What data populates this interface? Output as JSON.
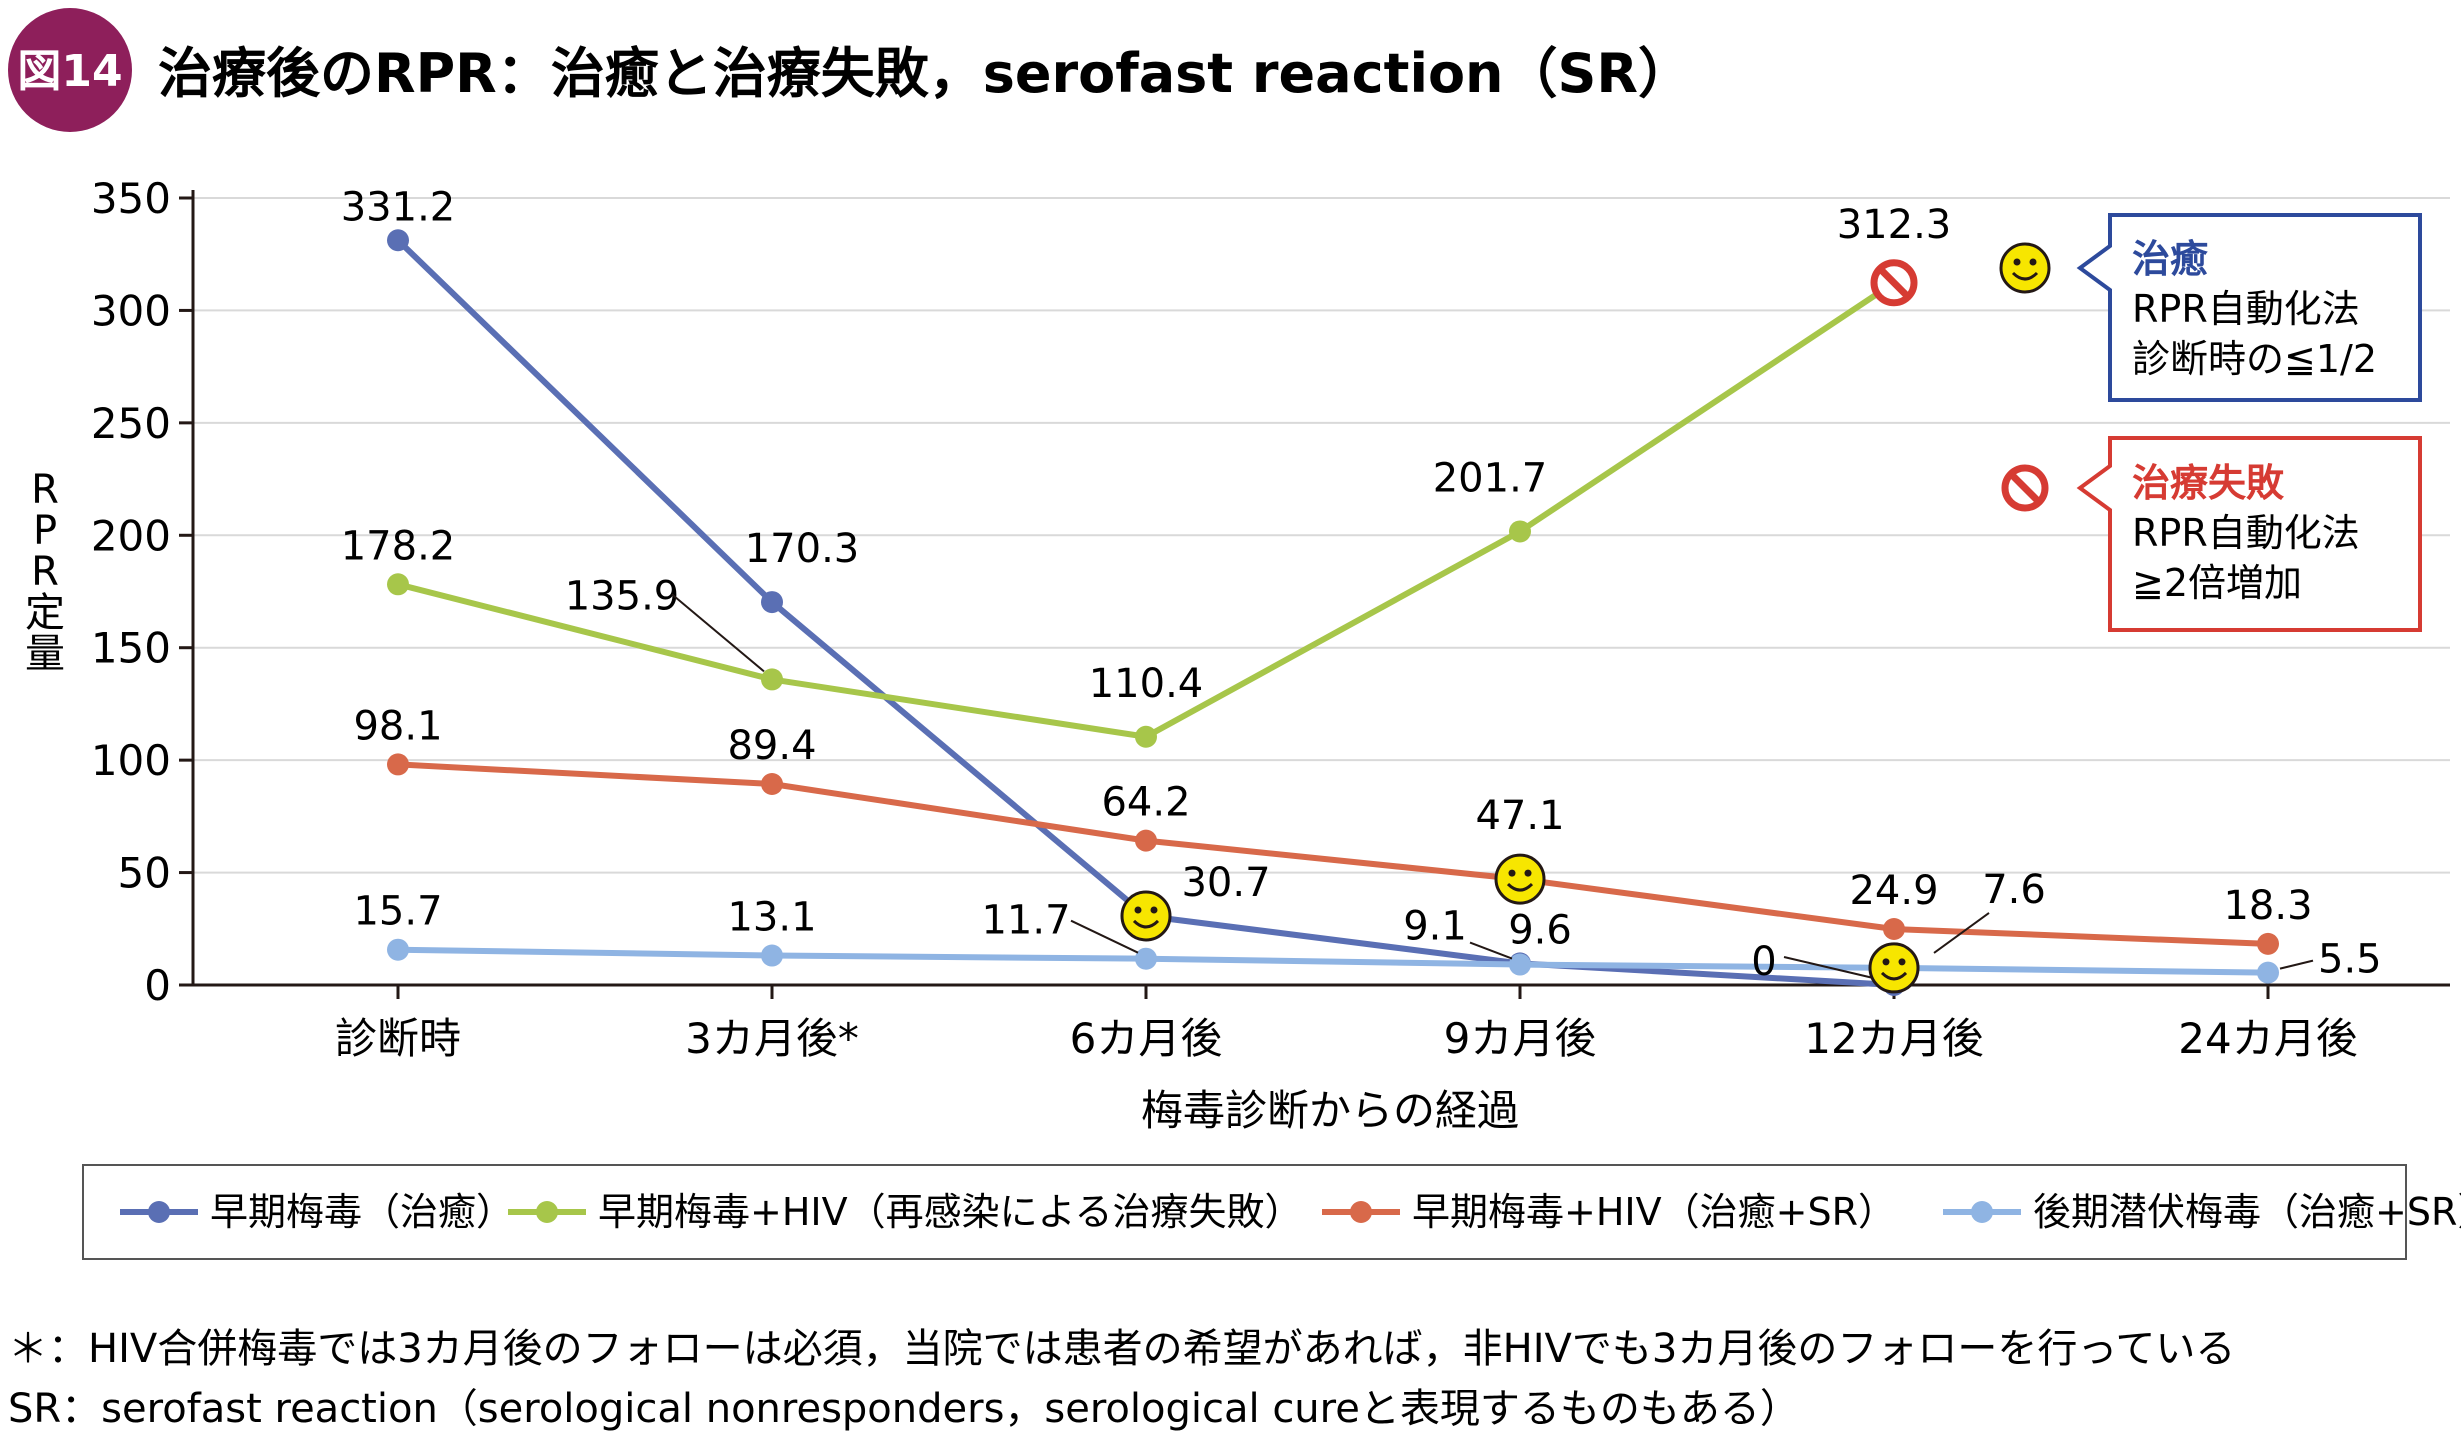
{
  "figure": {
    "badge": "図14",
    "title": "治療後のRPR：治癒と治療失敗，serofast reaction（SR）"
  },
  "chart_data": {
    "type": "line",
    "ylabel": "RPR定量",
    "xlabel": "梅毒診断からの経過",
    "ylim": [
      0,
      350
    ],
    "yticks": [
      "0",
      "50",
      "100",
      "150",
      "200",
      "250",
      "300",
      "350"
    ],
    "grid": true,
    "categories": [
      "診断時",
      "3カ月後*",
      "6カ月後",
      "9カ月後",
      "12カ月後",
      "24カ月後"
    ],
    "series": [
      {
        "name": "早期梅毒（治癒）",
        "color": "#5a6fb4",
        "x": [
          0,
          1,
          2,
          3,
          4
        ],
        "values": [
          331.2,
          170.3,
          30.7,
          9.6,
          0
        ],
        "labels": [
          "331.2",
          "170.3",
          "30.7",
          "9.6",
          "0"
        ]
      },
      {
        "name": "早期梅毒+HIV（再感染による治療失敗）",
        "color": "#a7c64a",
        "x": [
          0,
          1,
          2,
          3,
          4
        ],
        "values": [
          178.2,
          135.9,
          110.4,
          201.7,
          312.3
        ],
        "labels": [
          "178.2",
          "135.9",
          "110.4",
          "201.7",
          "312.3"
        ]
      },
      {
        "name": "早期梅毒+HIV（治癒+SR）",
        "color": "#d8694a",
        "x": [
          0,
          1,
          2,
          3,
          4,
          5
        ],
        "values": [
          98.1,
          89.4,
          64.2,
          47.1,
          24.9,
          18.3
        ],
        "labels": [
          "98.1",
          "89.4",
          "64.2",
          "47.1",
          "24.9",
          "18.3"
        ]
      },
      {
        "name": "後期潜伏梅毒（治癒+SR）",
        "color": "#8fb4e3",
        "x": [
          0,
          1,
          2,
          3,
          4,
          5
        ],
        "values": [
          15.7,
          13.1,
          11.7,
          9.1,
          7.6,
          5.5
        ],
        "labels": [
          "15.7",
          "13.1",
          "11.7",
          "9.1",
          "7.6",
          "5.5"
        ]
      }
    ],
    "legend_position": "bottom"
  },
  "annotations": {
    "cure_box": {
      "title": "治癒",
      "lines": [
        "RPR自動化法",
        "診断時の≦1/2"
      ],
      "border_color": "#2d4a9c",
      "title_color": "#2d4a9c"
    },
    "fail_box": {
      "title": "治療失敗",
      "lines": [
        "RPR自動化法",
        "≧2倍増加"
      ],
      "border_color": "#d63b33",
      "title_color": "#d63b33"
    }
  },
  "footnotes": [
    "＊：HIV合併梅毒では3カ月後のフォローは必須，当院では患者の希望があれば，非HIVでも3カ月後のフォローを行っている",
    "SR：serofast reaction（serological nonresponders，serological cureと表現するものもある）"
  ],
  "colors": {
    "badge": "#8e1f5b",
    "smiley": "#f7e600",
    "fail": "#d63b33",
    "axis": "#231815",
    "grid": "#d9d9d9"
  }
}
